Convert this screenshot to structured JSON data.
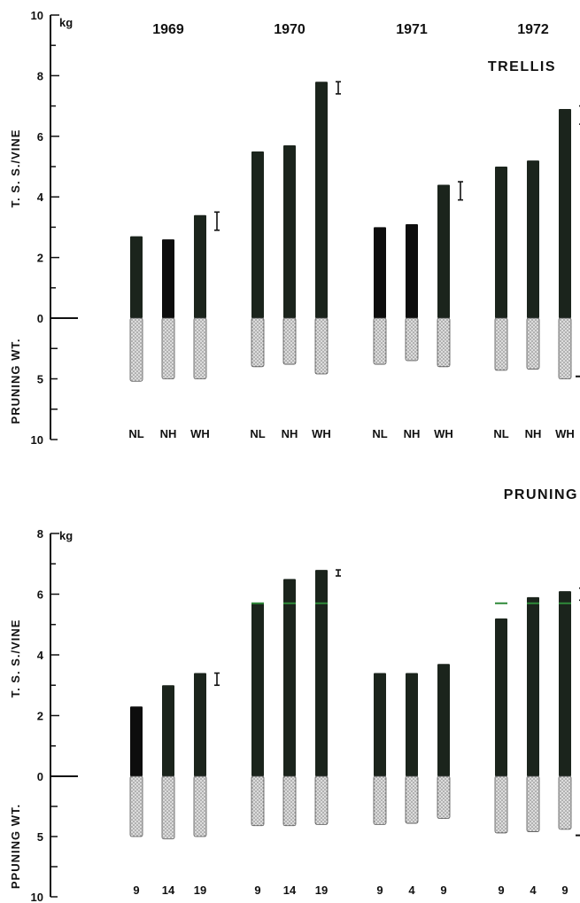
{
  "colors": {
    "top_bar": "#1b241c",
    "top_bar_alt": "#0d0d0d",
    "bottom_fill": "#d9d9d9",
    "bottom_dots": "#7a7a7a",
    "green_tint": "#2f8a3a",
    "ink": "#111111"
  },
  "chart_data": [
    {
      "type": "bar",
      "title": "TRELLIS",
      "unit": "kg",
      "ylabel_top": "T. S. S./VINE",
      "ylabel_bottom": "PRUNING WT.",
      "years": [
        "1969",
        "1970",
        "1971",
        "1972"
      ],
      "categories": [
        "NL",
        "NH",
        "WH"
      ],
      "yticks_top": [
        "10",
        "8",
        "6",
        "4",
        "2",
        "0"
      ],
      "yticks_bottom": [
        "5",
        "10"
      ],
      "ylim_top": [
        0,
        10
      ],
      "ylim_bottom": [
        0,
        10
      ],
      "series": [
        {
          "name": "T. S. S./VINE",
          "values": [
            [
              2.7,
              2.6,
              3.4
            ],
            [
              5.5,
              5.7,
              7.8
            ],
            [
              3.0,
              3.1,
              4.4
            ],
            [
              5.0,
              5.2,
              6.9
            ]
          ]
        },
        {
          "name": "PRUNING WT.",
          "values": [
            [
              5.2,
              5.0,
              5.0
            ],
            [
              4.0,
              3.8,
              4.6
            ],
            [
              3.8,
              3.5,
              4.0
            ],
            [
              4.3,
              4.2,
              5.0
            ]
          ]
        }
      ],
      "error_bars": [
        {
          "year": "1969",
          "value": 3.2,
          "half": 0.3
        },
        {
          "year": "1970",
          "value": 7.6,
          "half": 0.2
        },
        {
          "year": "1971",
          "value": 4.2,
          "half": 0.3
        },
        {
          "year": "1972",
          "value": 6.7,
          "half": 0.3
        }
      ],
      "bottom_error_marks": [
        {
          "year": "1972",
          "value": 4.8
        }
      ]
    },
    {
      "type": "bar",
      "title": "PRUNING",
      "unit": "kg",
      "ylabel_top": "T. S. S./VINE",
      "ylabel_bottom": "PPUNING WT.",
      "years": [
        "1969",
        "1970",
        "1971",
        "1972"
      ],
      "category_groups": [
        [
          "9",
          "14",
          "19"
        ],
        [
          "9",
          "14",
          "19"
        ],
        [
          "9",
          "4",
          "9"
        ],
        [
          "9",
          "4",
          "9"
        ]
      ],
      "yticks_top": [
        "8",
        "6",
        "4",
        "2",
        "0"
      ],
      "yticks_bottom": [
        "5",
        "10"
      ],
      "ylim_top": [
        0,
        8
      ],
      "ylim_bottom": [
        0,
        10
      ],
      "series": [
        {
          "name": "T. S. S./VINE",
          "values": [
            [
              2.3,
              3.0,
              3.4
            ],
            [
              5.7,
              6.5,
              6.8
            ],
            [
              3.4,
              3.4,
              3.7
            ],
            [
              5.2,
              5.9,
              6.1
            ]
          ]
        },
        {
          "name": "PPUNING WT.",
          "values": [
            [
              5.0,
              5.2,
              5.0
            ],
            [
              4.1,
              4.1,
              4.0
            ],
            [
              4.0,
              3.9,
              3.5
            ],
            [
              4.7,
              4.6,
              4.4
            ]
          ]
        }
      ],
      "error_bars": [
        {
          "year": "1969",
          "value": 3.2,
          "half": 0.2
        },
        {
          "year": "1970",
          "value": 6.7,
          "half": 0.1
        },
        {
          "year": "1972",
          "value": 6.0,
          "half": 0.2
        }
      ],
      "bottom_error_marks": [
        {
          "year": "1972",
          "value": 4.9
        }
      ]
    }
  ]
}
